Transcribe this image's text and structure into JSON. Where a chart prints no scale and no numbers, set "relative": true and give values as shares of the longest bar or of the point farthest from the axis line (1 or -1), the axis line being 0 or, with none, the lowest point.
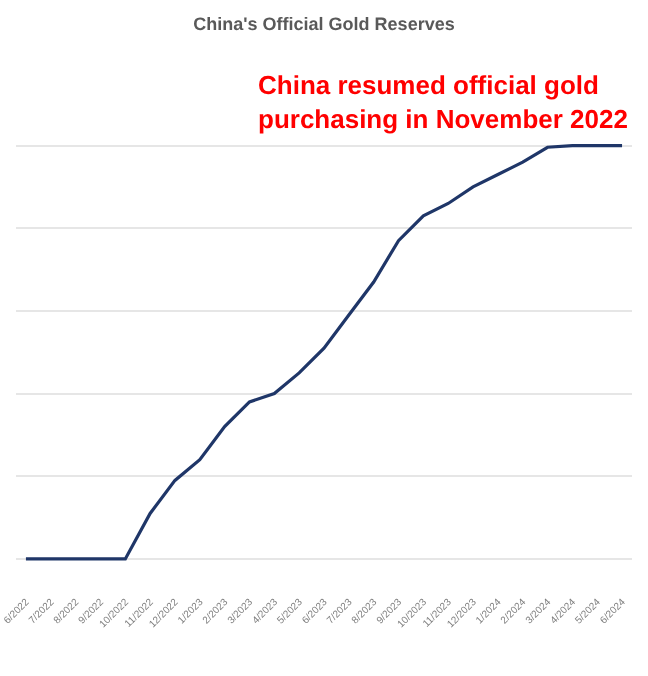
{
  "chart_data": {
    "type": "line",
    "title": "China's Official Gold Reserves",
    "relative": true,
    "grid": "y",
    "marker": "none",
    "line_style": "solid",
    "categories": [
      "6/2022",
      "7/2022",
      "8/2022",
      "9/2022",
      "10/2022",
      "11/2022",
      "12/2022",
      "1/2023",
      "2/2023",
      "3/2023",
      "4/2023",
      "5/2023",
      "6/2023",
      "7/2023",
      "8/2023",
      "9/2023",
      "10/2023",
      "11/2023",
      "12/2023",
      "1/2024",
      "2/2024",
      "3/2024",
      "4/2024",
      "5/2024",
      "6/2024"
    ],
    "series": [
      {
        "color": "#1f3668",
        "values": [
          0,
          0,
          0,
          0,
          0,
          0.11,
          0.19,
          0.24,
          0.32,
          0.38,
          0.4,
          0.45,
          0.51,
          0.59,
          0.67,
          0.77,
          0.83,
          0.86,
          0.9,
          0.93,
          0.96,
          0.996,
          1,
          1,
          1
        ]
      }
    ],
    "annotations": [
      "China resumed official gold purchasing in November 2022"
    ]
  }
}
